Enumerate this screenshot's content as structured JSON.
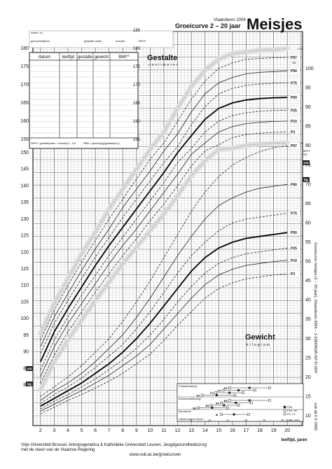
{
  "header": {
    "region": "Vlaanderen 2004",
    "subtitle": "Groeicurve 2 – 20 jaar",
    "title": "Meisjes",
    "name_label": "naam / id",
    "birth_label": "geboortedatum",
    "father_label": "gestalte vader",
    "mother_label": "moeder",
    "mph_label": "MPH*"
  },
  "table": {
    "columns": [
      "datum",
      "leeftijd",
      "gestalte",
      "gewicht",
      "BMI**"
    ],
    "footnote_mph": "*MPH = gestalte(vader + moeder)/2 – 6,5",
    "footnote_bmi": "**BMI = gewicht(kg)/[gestalte(m)²]"
  },
  "labels": {
    "gestalte": "Gestalte",
    "gestalte_unit": "centimeter",
    "gewicht": "Gewicht",
    "gewicht_unit": "kilogram",
    "xaxis": "leeftijd, jaren",
    "cm": "cm",
    "kg": "kg",
    "sd_plus": "+2,5",
    "sd": "SD",
    "sd_minus": "–2,5",
    "mph": "MPH",
    "sd_word": "SD"
  },
  "puberty": {
    "title1": "Pubisbeharing*",
    "title2": "Borstontwikkeling*",
    "title3": "Menarche",
    "stages1": [
      "P5",
      "P4",
      "P3",
      "P2"
    ],
    "stages2": [
      "B5",
      "B4",
      "B3",
      "B2"
    ],
    "stage3": "M",
    "footnote": "*stadia volgens Tanner",
    "legend": [
      "P50",
      "P10, 90",
      "P3, 97"
    ],
    "xlabel": "leeftijd, jaren"
  },
  "footer": {
    "line1": "Vrije Universiteit Brussel, Antropogenetica & Katholieke Universiteit Leuven, Jeugdgezondheidszorg",
    "line2": "met de steun van de Vlaamse Regering",
    "url": "www.vub.ac.be/groeicurven"
  },
  "sidebar": {
    "text1": "Groeicurve meisjes (2 – 20 jaar), Vlaanderen 2004  –  1-2060963A-NP-D-20/F",
    "text2": "vub ab ll © 2005"
  },
  "chart_data": {
    "type": "line",
    "title": "Groeicurve 2 – 20 jaar",
    "xlabel": "leeftijd, jaren",
    "x_ticks": [
      2,
      3,
      4,
      5,
      6,
      7,
      8,
      9,
      10,
      11,
      12,
      13,
      14,
      15,
      16,
      17,
      18,
      19,
      20
    ],
    "x": [
      2,
      3,
      4,
      5,
      6,
      7,
      8,
      9,
      10,
      11,
      12,
      13,
      14,
      15,
      16,
      17,
      18,
      19,
      20
    ],
    "height": {
      "ylabel": "centimeter",
      "ylim_lower": [
        75,
        150
      ],
      "ylim_upper": [
        150,
        185
      ],
      "left_ticks": [
        80,
        85,
        90,
        95,
        100,
        105,
        110,
        115,
        120,
        125,
        130,
        135,
        140,
        145,
        150,
        155,
        160,
        165,
        170,
        175,
        180,
        185
      ],
      "series": [
        {
          "name": "+2,5",
          "values": [
            95.5,
            104.5,
            112,
            119.5,
            126,
            133,
            139,
            145,
            151,
            157,
            163.5,
            169.5,
            174,
            177,
            178.5,
            179,
            179.5,
            179.5,
            180
          ]
        },
        {
          "name": "P97",
          "values": [
            93.5,
            102.5,
            110,
            117,
            123.5,
            130,
            136,
            142,
            148,
            154,
            160,
            166,
            171,
            174.5,
            176,
            177,
            177.2,
            177.4,
            177.5
          ]
        },
        {
          "name": "P90",
          "values": [
            91.5,
            100.5,
            107.5,
            114.5,
            121,
            127,
            133.5,
            139,
            144.5,
            150.5,
            156.5,
            162.5,
            167.5,
            170.5,
            172,
            173,
            173.4,
            173.6,
            173.8
          ]
        },
        {
          "name": "P75",
          "values": [
            89.5,
            98.5,
            105.5,
            112,
            118.5,
            124.5,
            130.5,
            136,
            141.5,
            147,
            153,
            159,
            164,
            167.5,
            169,
            169.8,
            170.2,
            170.4,
            170.5
          ]
        },
        {
          "name": "P50",
          "values": [
            87,
            96,
            103,
            109.5,
            116,
            122,
            127.5,
            133,
            138.5,
            144,
            150,
            156,
            160.5,
            163.5,
            165,
            165.8,
            166.2,
            166.4,
            166.5
          ]
        },
        {
          "name": "P25",
          "values": [
            84.5,
            93.5,
            100.5,
            107,
            113,
            119,
            124.5,
            130,
            135.5,
            141,
            147,
            152.5,
            157,
            160,
            161.5,
            162.3,
            162.7,
            162.9,
            163
          ]
        },
        {
          "name": "P10",
          "values": [
            82.5,
            91.5,
            98.5,
            104.5,
            110.5,
            116.5,
            122,
            127,
            132.5,
            138,
            143.5,
            149.5,
            154,
            157,
            158.5,
            159.3,
            159.7,
            159.9,
            160
          ]
        },
        {
          "name": "P3",
          "values": [
            80.5,
            89,
            96,
            102,
            108,
            113.5,
            119,
            124,
            129.5,
            134.5,
            140,
            146,
            150.5,
            153.5,
            155.5,
            156.3,
            156.7,
            156.9,
            157
          ]
        },
        {
          "name": "–2,5",
          "values": [
            78.5,
            87,
            93.5,
            99.5,
            105.5,
            111,
            116.5,
            121.5,
            126.5,
            131.5,
            137,
            143,
            147.5,
            151,
            152.5,
            153.3,
            153.7,
            153.9,
            154
          ]
        }
      ]
    },
    "weight": {
      "ylabel": "kilogram",
      "ylim": [
        6,
        100
      ],
      "right_ticks": [
        10,
        15,
        20,
        25,
        30,
        35,
        40,
        45,
        50,
        55,
        60,
        65,
        70,
        75,
        80,
        85,
        90,
        95,
        100
      ],
      "series": [
        {
          "name": "P97",
          "values": [
            15,
            17.5,
            20,
            23,
            26.5,
            30,
            34.5,
            39.5,
            45,
            51,
            57,
            63,
            68,
            72,
            75,
            77,
            78.5,
            79.5,
            80
          ]
        },
        {
          "name": "P90",
          "values": [
            14,
            16.5,
            18.5,
            21,
            24,
            27.5,
            31,
            35.5,
            40.5,
            46,
            51.5,
            56.5,
            61,
            64.5,
            66.5,
            68,
            69,
            69.5,
            70
          ]
        },
        {
          "name": "P75",
          "values": [
            13.2,
            15.5,
            17.5,
            19.8,
            22.5,
            25.5,
            28.5,
            32.5,
            37,
            42,
            47,
            51.5,
            55,
            58,
            60,
            61,
            61.5,
            62,
            62.5
          ]
        },
        {
          "name": "P50",
          "values": [
            12.5,
            14.5,
            16.5,
            18.5,
            21,
            23.5,
            26.5,
            30,
            34,
            38.5,
            43,
            47.5,
            51,
            53.5,
            55,
            56,
            56.5,
            57,
            57.5
          ]
        },
        {
          "name": "P25",
          "values": [
            11.8,
            13.8,
            15.5,
            17.5,
            19.5,
            22,
            24.5,
            27.5,
            31,
            35,
            39.5,
            43.5,
            47,
            49.5,
            51,
            52,
            52.5,
            53,
            53.5
          ]
        },
        {
          "name": "P10",
          "values": [
            11.2,
            13,
            14.8,
            16.5,
            18.5,
            20.5,
            23,
            25.5,
            28.5,
            32.5,
            36.5,
            40.5,
            44,
            46.5,
            48,
            49,
            49.5,
            50,
            50.3
          ]
        },
        {
          "name": "P3",
          "values": [
            10.5,
            12.2,
            14,
            15.5,
            17.2,
            19,
            21,
            23.5,
            26,
            29.5,
            33.5,
            37,
            40.5,
            43,
            44.5,
            45.5,
            46,
            46.5,
            46.8
          ]
        }
      ]
    },
    "puberty_ages": {
      "P5": [
        12.2,
        14.4,
        16.6
      ],
      "P4": [
        11.5,
        13.2,
        15.0
      ],
      "P3": [
        10.7,
        12.2,
        13.7
      ],
      "P2": [
        9.2,
        10.8,
        12.8
      ],
      "B5": [
        12.2,
        14.4,
        16.6
      ],
      "B4": [
        11.3,
        12.9,
        14.6
      ],
      "B3": [
        10.2,
        11.6,
        13.2
      ],
      "B2": [
        8.8,
        10.3,
        12.0
      ],
      "M": [
        11.3,
        12.7,
        14.3
      ]
    }
  }
}
